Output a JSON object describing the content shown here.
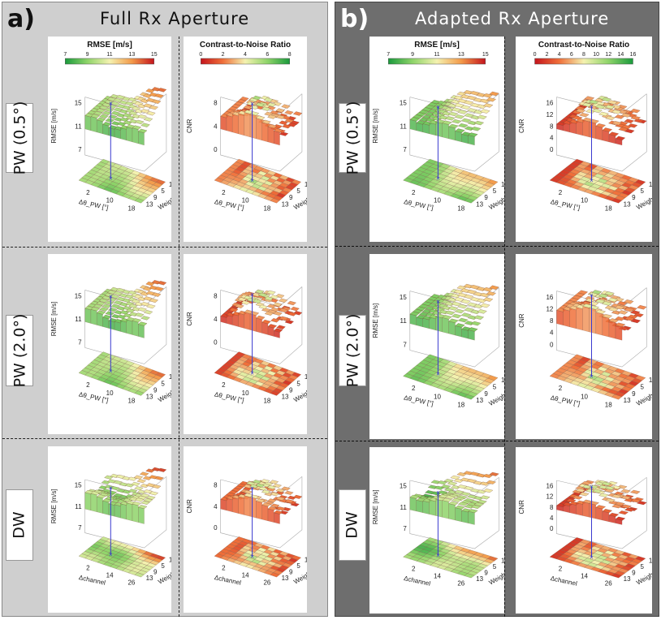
{
  "panels": [
    {
      "id": "a",
      "label": "a)",
      "title": "Full Rx Aperture",
      "rows": [
        {
          "label": "PW (0.5°)",
          "plots": [
            {
              "metric": "rmse",
              "colorbar_title": "RMSE [m/s]",
              "colorbar_ticks": [
                "7",
                "9",
                "11",
                "13",
                "15"
              ],
              "z_label": "RMSE [m/s]",
              "z_ticks": [
                "15",
                "11",
                "7"
              ],
              "x_label": "Δθ_PW [°]",
              "x_ticks": [
                "2",
                "10",
                "18"
              ],
              "y_label": "Weight λ",
              "y_ticks": [
                "13",
                "9",
                "5",
                "1"
              ]
            },
            {
              "metric": "cnr",
              "colorbar_title": "Contrast-to-Noise Ratio",
              "colorbar_ticks": [
                "0",
                "2",
                "4",
                "6",
                "8"
              ],
              "z_label": "CNR",
              "z_ticks": [
                "8",
                "4",
                "0"
              ],
              "x_label": "Δθ_PW [°]",
              "x_ticks": [
                "2",
                "10",
                "18"
              ],
              "y_label": "Weight λ",
              "y_ticks": [
                "13",
                "9",
                "5",
                "1"
              ]
            }
          ]
        },
        {
          "label": "PW (2.0°)",
          "plots": [
            {
              "metric": "rmse",
              "z_label": "RMSE [m/s]",
              "z_ticks": [
                "15",
                "11",
                "7"
              ],
              "x_label": "Δθ_PW [°]",
              "x_ticks": [
                "2",
                "10",
                "18"
              ],
              "y_label": "Weight λ",
              "y_ticks": [
                "13",
                "9",
                "5",
                "1"
              ]
            },
            {
              "metric": "cnr",
              "z_label": "CNR",
              "z_ticks": [
                "8",
                "4",
                "0"
              ],
              "x_label": "Δθ_PW [°]",
              "x_ticks": [
                "2",
                "10",
                "18"
              ],
              "y_label": "Weight λ",
              "y_ticks": [
                "13",
                "9",
                "5",
                "1"
              ]
            }
          ]
        },
        {
          "label": "DW",
          "plots": [
            {
              "metric": "rmse",
              "z_label": "RMSE [m/s]",
              "z_ticks": [
                "15",
                "11",
                "7"
              ],
              "x_label": "Δchannel",
              "x_ticks": [
                "2",
                "14",
                "26"
              ],
              "y_label": "Weight λ",
              "y_ticks": [
                "13",
                "9",
                "5",
                "1"
              ]
            },
            {
              "metric": "cnr",
              "z_label": "CNR",
              "z_ticks": [
                "8",
                "4",
                "0"
              ],
              "x_label": "Δchannel",
              "x_ticks": [
                "2",
                "14",
                "26"
              ],
              "y_label": "Weight λ",
              "y_ticks": [
                "13",
                "9",
                "5",
                "1"
              ]
            }
          ]
        }
      ]
    },
    {
      "id": "b",
      "label": "b)",
      "title": "Adapted Rx Aperture",
      "rows": [
        {
          "label": "PW (0.5°)",
          "plots": [
            {
              "metric": "rmse",
              "colorbar_title": "RMSE [m/s]",
              "colorbar_ticks": [
                "7",
                "9",
                "11",
                "13",
                "15"
              ],
              "z_label": "RMSE [m/s]",
              "z_ticks": [
                "15",
                "11",
                "7"
              ],
              "x_label": "Δθ_PW [°]",
              "x_ticks": [
                "2",
                "10",
                "18"
              ],
              "y_label": "Weight λ",
              "y_ticks": [
                "13",
                "9",
                "5",
                "1"
              ]
            },
            {
              "metric": "cnr",
              "colorbar_title": "Contrast-to-Noise Ratio",
              "colorbar_ticks": [
                "0",
                "2",
                "4",
                "6",
                "8",
                "10",
                "12",
                "14",
                "16"
              ],
              "z_label": "CNR",
              "z_ticks": [
                "16",
                "12",
                "8",
                "4",
                "0"
              ],
              "x_label": "Δθ_PW [°]",
              "x_ticks": [
                "2",
                "10",
                "18"
              ],
              "y_label": "Weight λ",
              "y_ticks": [
                "13",
                "9",
                "5",
                "1"
              ]
            }
          ]
        },
        {
          "label": "PW (2.0°)",
          "plots": [
            {
              "metric": "rmse",
              "z_label": "RMSE [m/s]",
              "z_ticks": [
                "15",
                "11",
                "7"
              ],
              "x_label": "Δθ_PW [°]",
              "x_ticks": [
                "2",
                "10",
                "18"
              ],
              "y_label": "Weight λ",
              "y_ticks": [
                "13",
                "9",
                "5",
                "1"
              ]
            },
            {
              "metric": "cnr",
              "z_label": "CNR",
              "z_ticks": [
                "16",
                "12",
                "8",
                "4",
                "0"
              ],
              "x_label": "Δθ_PW [°]",
              "x_ticks": [
                "2",
                "10",
                "18"
              ],
              "y_label": "Weight λ",
              "y_ticks": [
                "13",
                "9",
                "5",
                "1"
              ]
            }
          ]
        },
        {
          "label": "DW",
          "plots": [
            {
              "metric": "rmse",
              "z_label": "RMSE [m/s]",
              "z_ticks": [
                "15",
                "11",
                "7"
              ],
              "x_label": "Δchannel",
              "x_ticks": [
                "2",
                "14",
                "26"
              ],
              "y_label": "Weight λ",
              "y_ticks": [
                "13",
                "9",
                "5",
                "1"
              ]
            },
            {
              "metric": "cnr",
              "z_label": "CNR",
              "z_ticks": [
                "16",
                "12",
                "8",
                "4",
                "0"
              ],
              "x_label": "Δchannel",
              "x_ticks": [
                "2",
                "14",
                "26"
              ],
              "y_label": "Weight λ",
              "y_ticks": [
                "13",
                "9",
                "5",
                "1"
              ]
            }
          ]
        }
      ]
    }
  ],
  "colors": {
    "rmse_scale": [
      "#1a9a3c",
      "#8fd46a",
      "#f4f2b0",
      "#f39a4a",
      "#c4141c"
    ],
    "cnr_scale": [
      "#c4141c",
      "#f0703a",
      "#f4f2b0",
      "#8fd46a",
      "#1a9a3c"
    ],
    "marker": "#3a3ad0"
  }
}
